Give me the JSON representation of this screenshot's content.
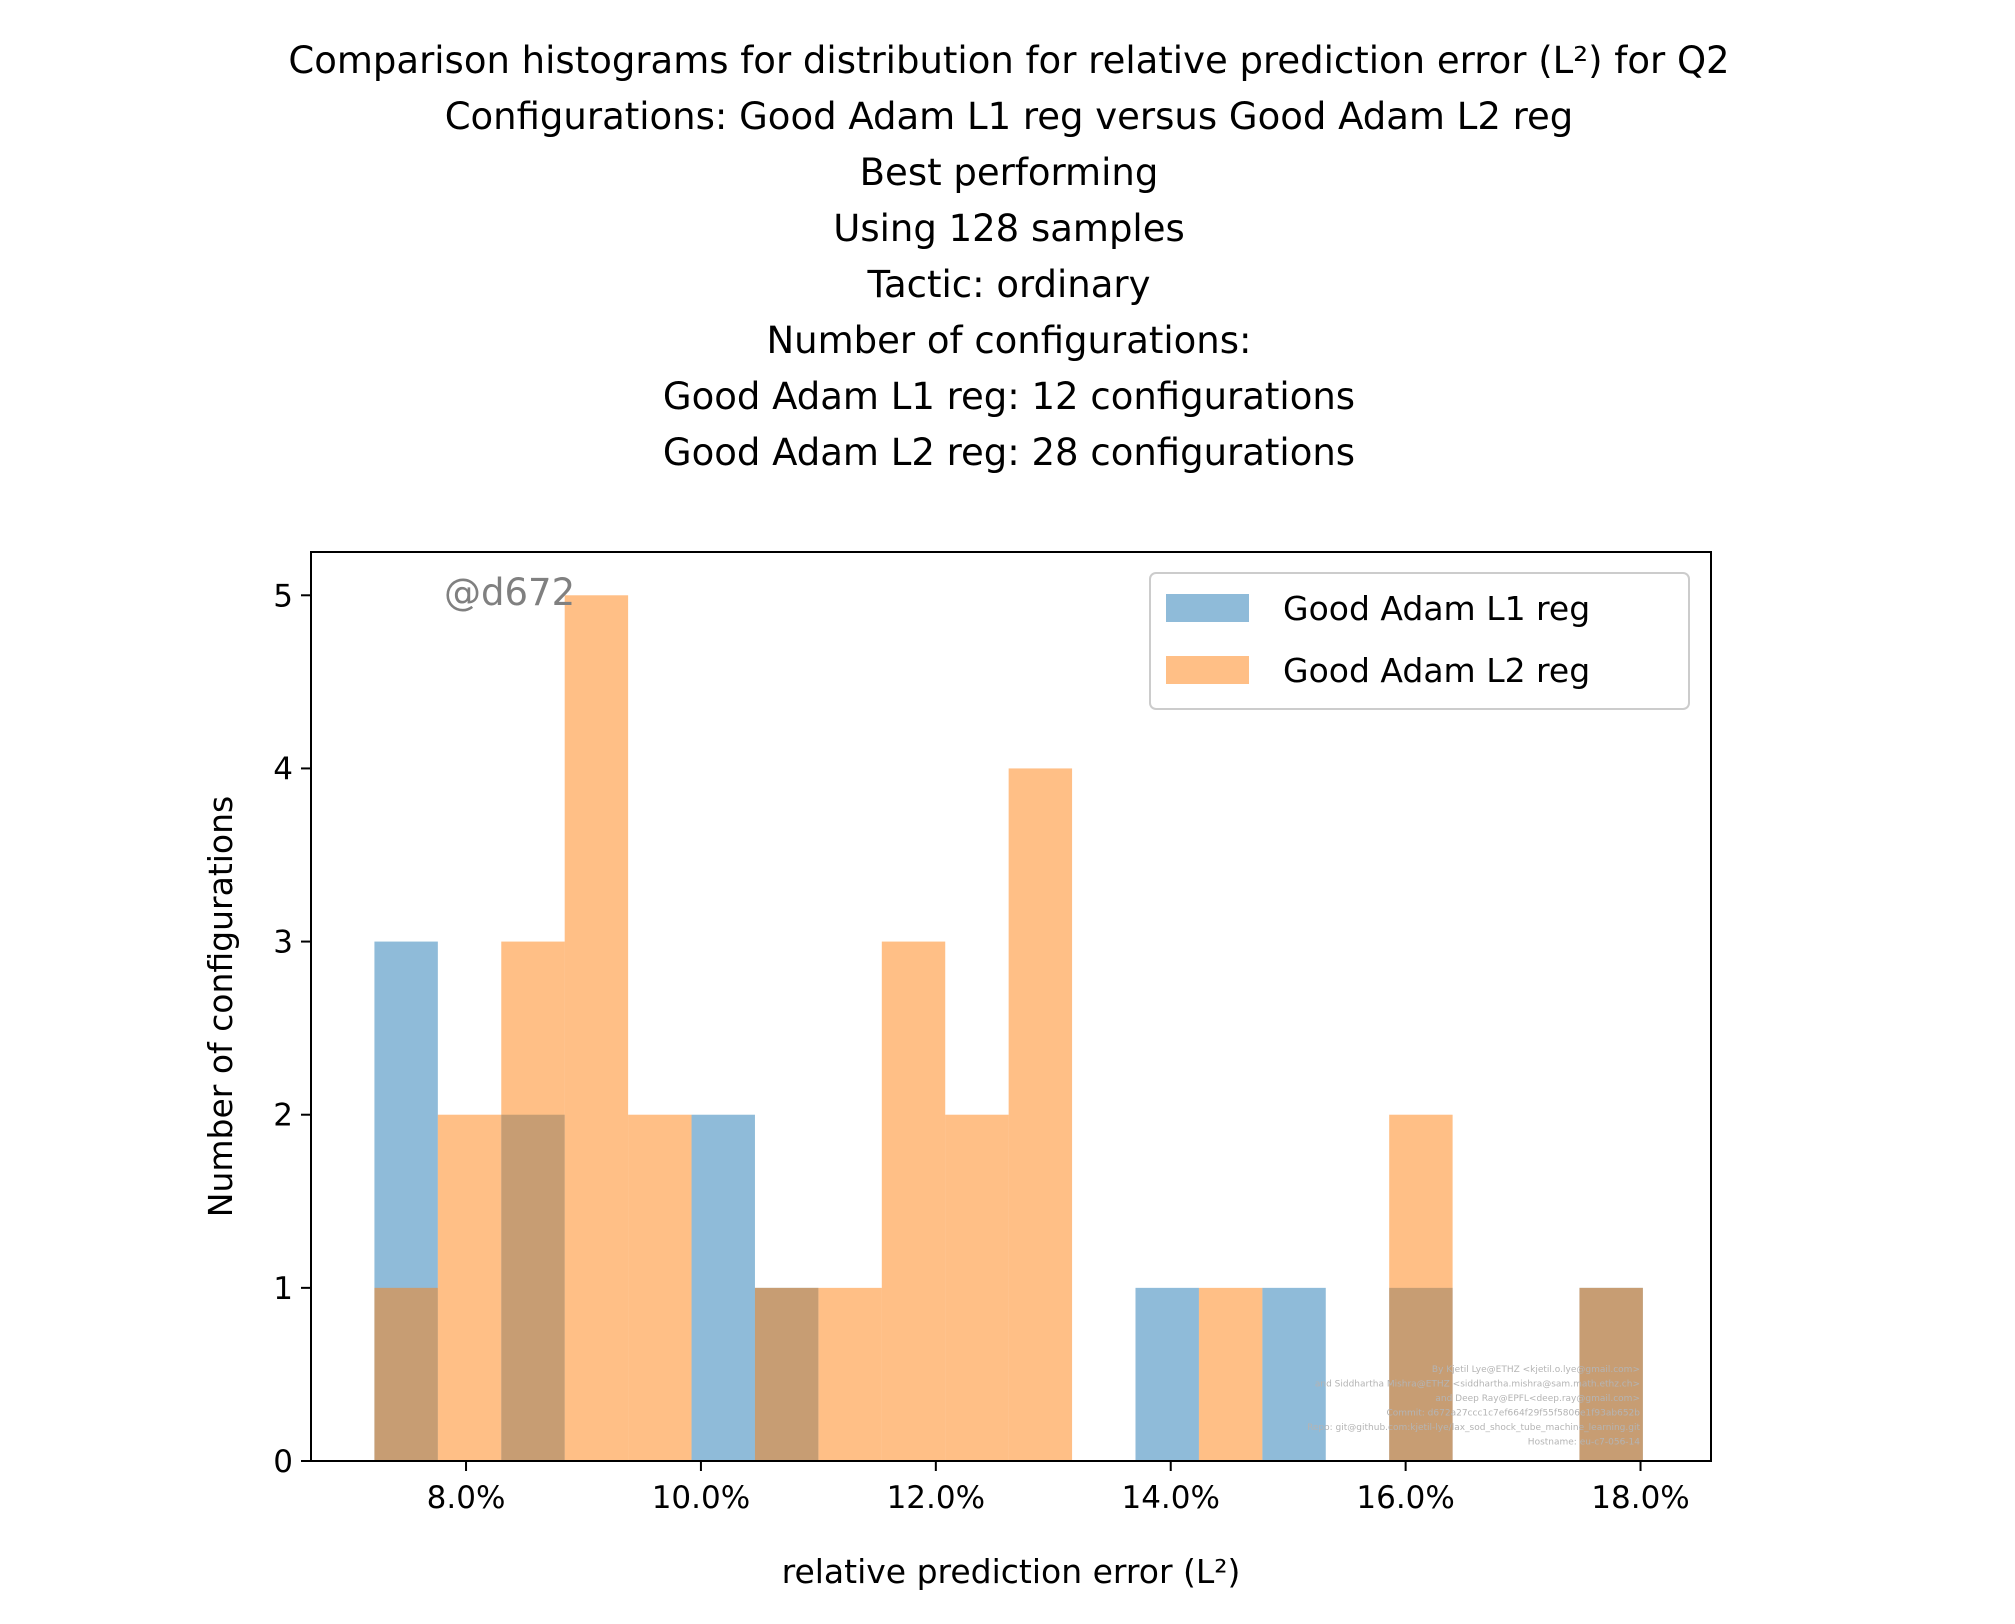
{
  "chart_data": {
    "type": "bar",
    "title_lines": [
      "Comparison histograms for distribution for relative prediction error (L²) for Q2",
      "Configurations: Good Adam L1 reg versus Good Adam L2 reg",
      "Best performing",
      "Using 128 samples",
      "Tactic: ordinary",
      "Number of configurations:",
      "Good Adam L1 reg: 12 configurations",
      "Good Adam L2 reg: 28 configurations"
    ],
    "xlabel": "relative prediction error (L²)",
    "ylabel": "Number of configurations",
    "xlim": [
      6.68,
      18.6
    ],
    "ylim": [
      0,
      5.25
    ],
    "x_ticks": [
      8,
      10,
      12,
      14,
      16,
      18
    ],
    "x_tick_labels": [
      "8.0%",
      "10.0%",
      "12.0%",
      "14.0%",
      "16.0%",
      "18.0%"
    ],
    "y_ticks": [
      0,
      1,
      2,
      3,
      4,
      5
    ],
    "y_tick_labels": [
      "0",
      "1",
      "2",
      "3",
      "4",
      "5"
    ],
    "bin_edges": [
      7.22,
      7.76,
      8.3,
      8.84,
      9.38,
      9.92,
      10.46,
      11.0,
      11.54,
      12.08,
      12.62,
      13.16,
      13.7,
      14.24,
      14.78,
      15.32,
      15.86,
      16.4,
      16.94,
      17.48,
      18.02
    ],
    "series": [
      {
        "name": "Good Adam L1 reg",
        "color": "#1f77b4",
        "alpha": 0.5,
        "values": [
          3,
          0,
          2,
          0,
          0,
          2,
          1,
          0,
          0,
          0,
          0,
          0,
          1,
          0,
          1,
          0,
          1,
          0,
          0,
          1
        ]
      },
      {
        "name": "Good Adam L2 reg",
        "color": "#ff7f0e",
        "alpha": 0.5,
        "values": [
          1,
          2,
          3,
          5,
          2,
          0,
          1,
          1,
          3,
          2,
          4,
          0,
          0,
          1,
          0,
          0,
          2,
          0,
          0,
          1
        ]
      }
    ],
    "legend_position": "upper right",
    "grid": false,
    "watermark": "@d672",
    "credits": [
      "By Kjetil Lye@ETHZ <kjetil.o.lye@gmail.com>",
      "and Siddhartha Mishra@ETHZ <siddhartha.mishra@sam.math.ethz.ch>",
      "and Deep Ray@EPFL<deep.ray@gmail.com>",
      "Commit: d672a27ccc1c7ef664f29f55f5806e1f93ab652b",
      "Repo: git@github.com:kjetil-lye/lax_sod_shock_tube_machine_learning.git",
      "Hostname: eu-c7-056-14"
    ]
  }
}
